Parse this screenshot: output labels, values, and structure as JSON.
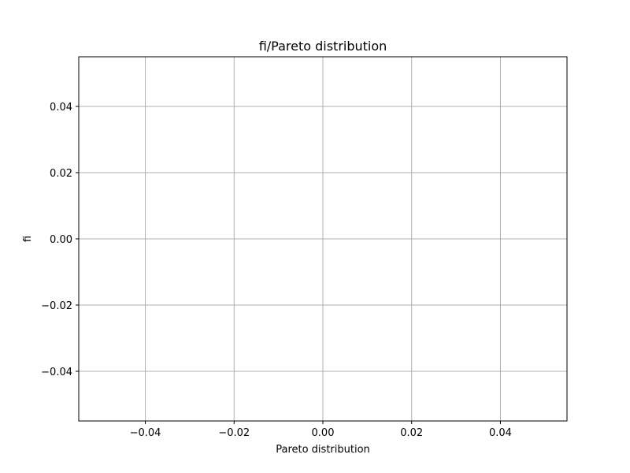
{
  "chart_data": {
    "type": "line",
    "title": "fi/Pareto distribution",
    "xlabel": "Pareto distribution",
    "ylabel": "fi",
    "xlim": [
      -0.055,
      0.055
    ],
    "ylim": [
      -0.055,
      0.055
    ],
    "xticks": [
      -0.04,
      -0.02,
      0.0,
      0.02,
      0.04
    ],
    "yticks": [
      -0.04,
      -0.02,
      0.0,
      0.02,
      0.04
    ],
    "xtick_labels": [
      "−0.04",
      "−0.02",
      "0.00",
      "0.02",
      "0.04"
    ],
    "ytick_labels": [
      "−0.04",
      "−0.02",
      "0.00",
      "0.02",
      "0.04"
    ],
    "grid": true,
    "series": [],
    "colors": {
      "grid": "#b0b0b0",
      "axes": "#000000",
      "background": "#ffffff"
    }
  }
}
